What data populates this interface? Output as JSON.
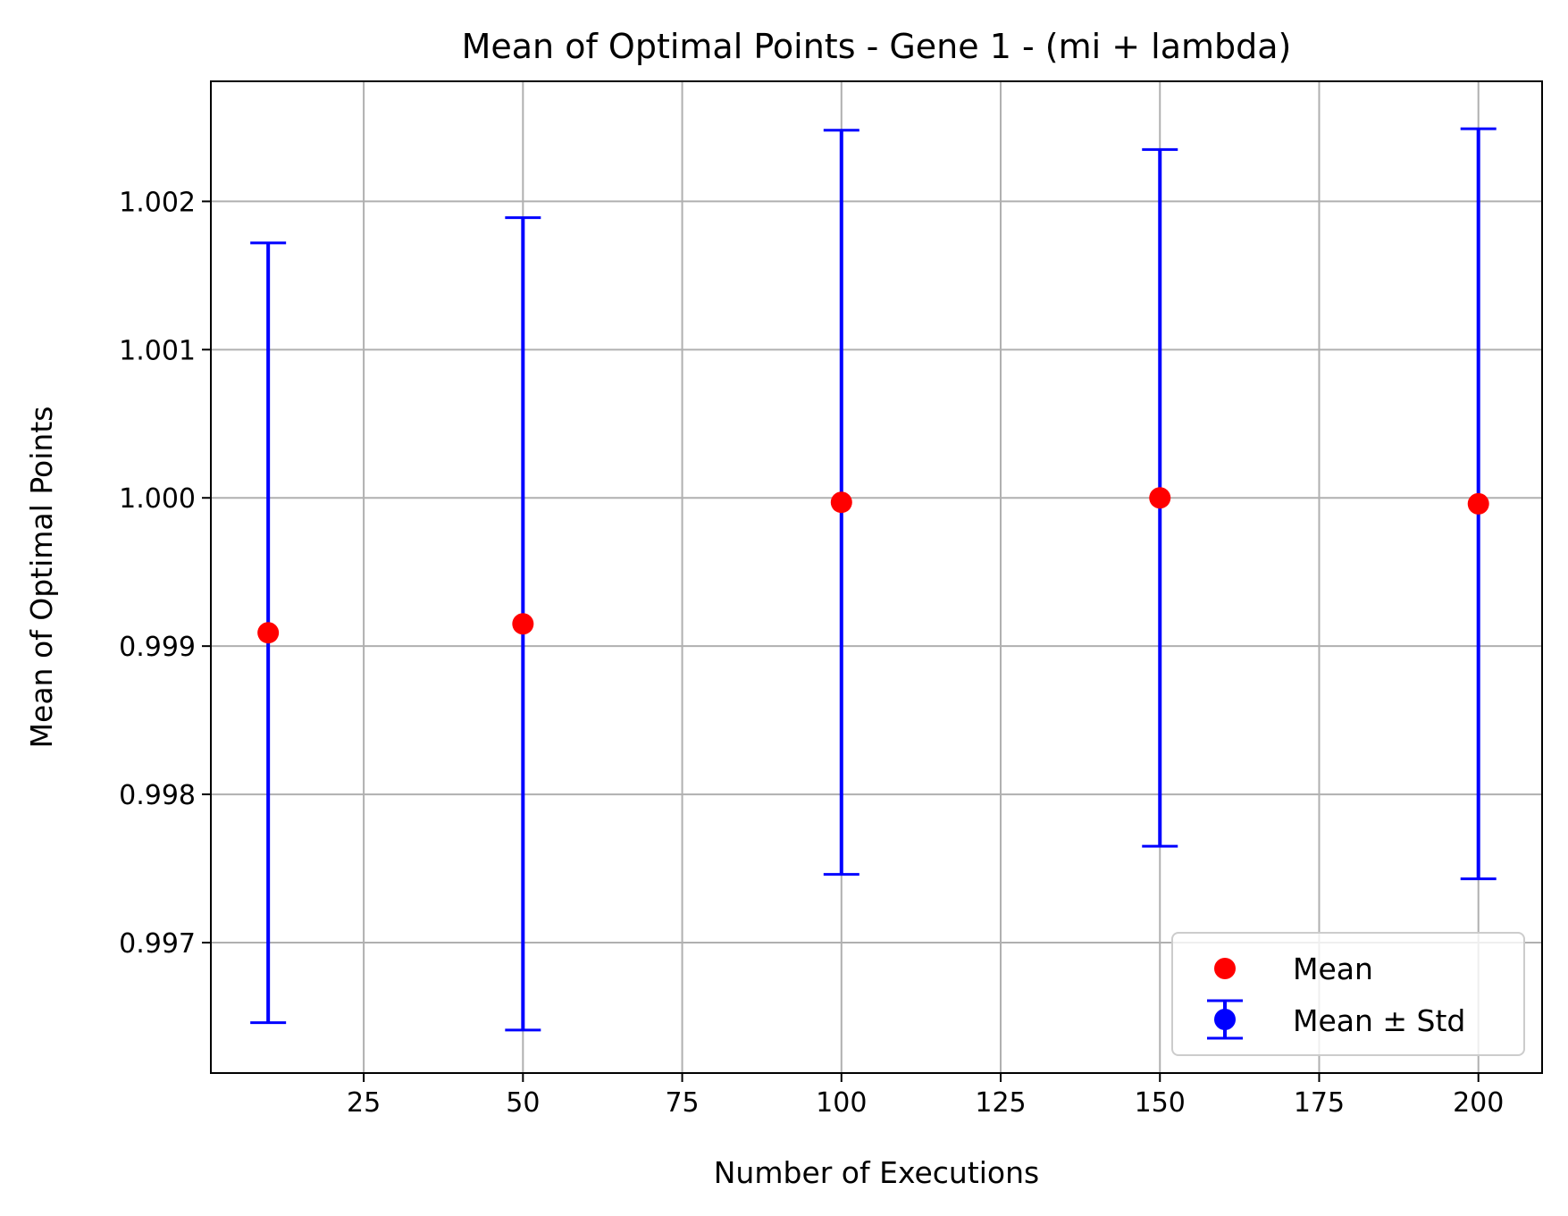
{
  "chart_data": {
    "type": "scatter",
    "title": "Mean of Optimal Points - Gene 1 - (mi + lambda)",
    "xlabel": "Number of Executions",
    "ylabel": "Mean of Optimal Points",
    "xlim": [
      1,
      210
    ],
    "ylim": [
      0.99612,
      1.00281
    ],
    "xticks": [
      25,
      50,
      75,
      100,
      125,
      150,
      175,
      200
    ],
    "xtick_labels": [
      "25",
      "50",
      "75",
      "100",
      "125",
      "150",
      "175",
      "200"
    ],
    "yticks": [
      0.997,
      0.998,
      0.999,
      1.0,
      1.001,
      1.002
    ],
    "ytick_labels": [
      "0.997",
      "0.998",
      "0.999",
      "1.000",
      "1.001",
      "1.002"
    ],
    "grid": true,
    "legend_position": "lower-right",
    "series": [
      {
        "name": "Mean",
        "marker": "circle",
        "color": "#ff0000",
        "x": [
          10,
          50,
          100,
          150,
          200
        ],
        "y": [
          0.99909,
          0.99915,
          0.99997,
          1.0,
          0.99996
        ]
      },
      {
        "name": "Mean ± Std",
        "marker": "errorbar",
        "color": "#0000ff",
        "x": [
          10,
          50,
          100,
          150,
          200
        ],
        "y": [
          0.99909,
          0.99915,
          0.99997,
          1.0,
          0.99996
        ],
        "std": [
          0.00263,
          0.00274,
          0.00251,
          0.00235,
          0.00253
        ]
      }
    ]
  }
}
